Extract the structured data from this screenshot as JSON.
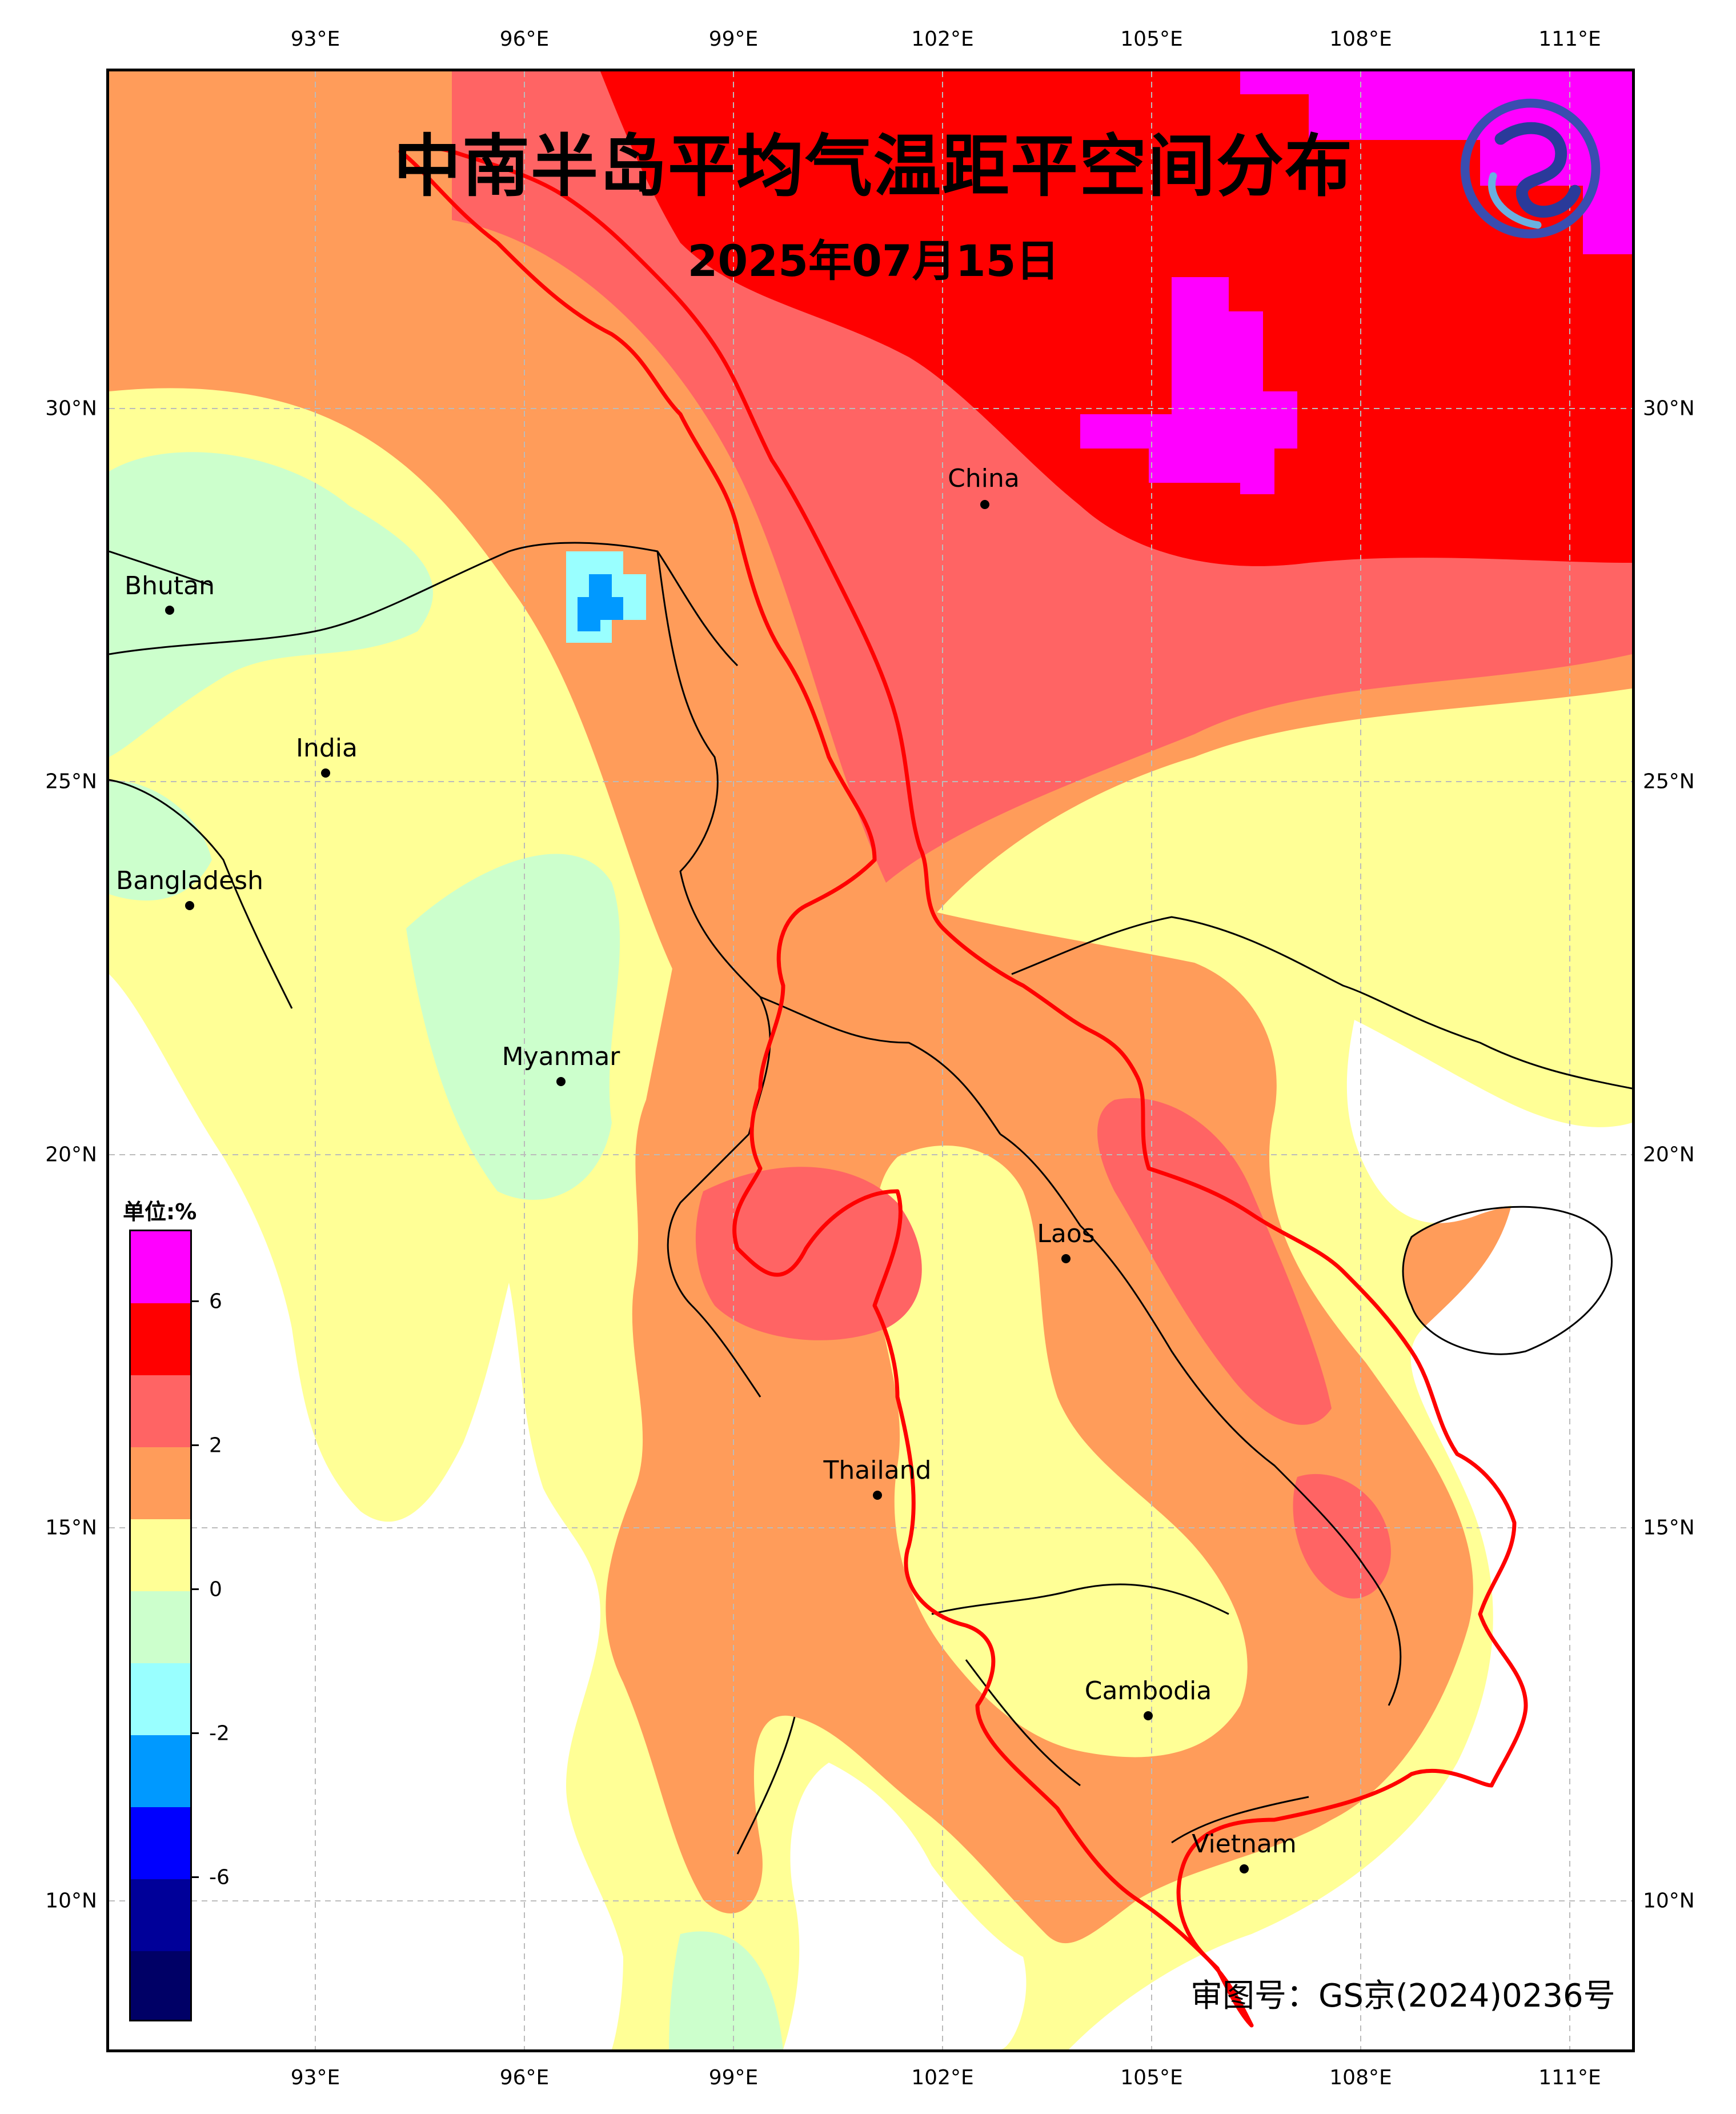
{
  "title": "中南半岛平均气温距平空间分布",
  "date": "2025年07月15日",
  "approval_number": "审图号：GS京(2024)0236号",
  "legend": {
    "unit_label": "单位:%",
    "tick_labels": [
      "6",
      "2",
      "0",
      "-2",
      "-6"
    ],
    "classes": [
      {
        "color": "#ff00ff"
      },
      {
        "color": "#ff0000"
      },
      {
        "color": "#ff6464"
      },
      {
        "color": "#ff9c5a"
      },
      {
        "color": "#ffff96"
      },
      {
        "color": "#ccffcc"
      },
      {
        "color": "#99ffff"
      },
      {
        "color": "#0099ff"
      },
      {
        "color": "#0000ff"
      },
      {
        "color": "#000099"
      },
      {
        "color": "#000066"
      }
    ]
  },
  "axes": {
    "lon_labels": [
      "93°E",
      "96°E",
      "99°E",
      "102°E",
      "105°E",
      "108°E",
      "111°E"
    ],
    "lat_labels": [
      "30°N",
      "25°N",
      "20°N",
      "15°N",
      "10°N"
    ]
  },
  "cities": [
    {
      "name": "China"
    },
    {
      "name": "Bhutan"
    },
    {
      "name": "India"
    },
    {
      "name": "Bangladesh"
    },
    {
      "name": "Myanmar"
    },
    {
      "name": "Laos"
    },
    {
      "name": "Thailand"
    },
    {
      "name": "Cambodia"
    },
    {
      "name": "Vietnam"
    }
  ],
  "icons": {
    "logo": "cma-dragon-logo-icon"
  }
}
